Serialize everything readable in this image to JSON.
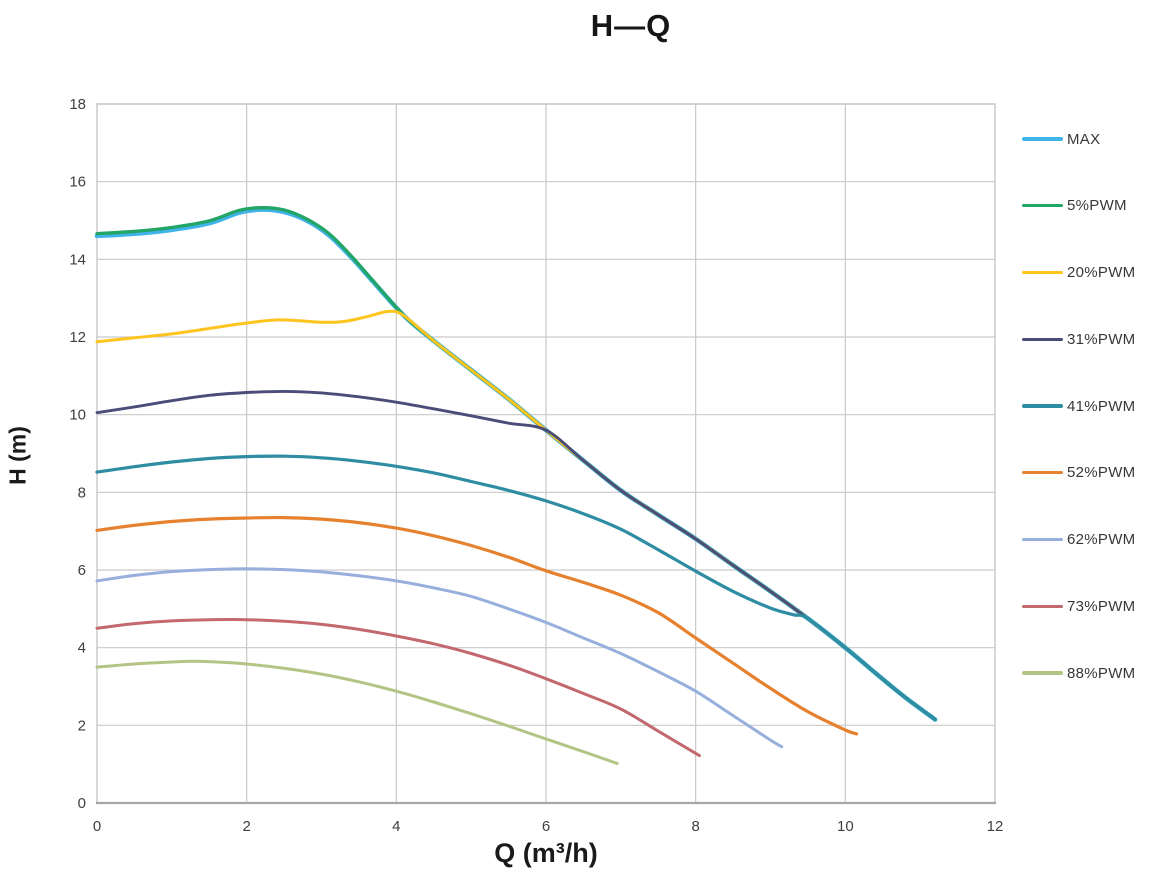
{
  "chart_data": {
    "type": "line",
    "title": "H—Q",
    "xlabel": "Q (m³/h)",
    "ylabel": "H (m)",
    "xlim": [
      0,
      12
    ],
    "ylim": [
      0,
      18
    ],
    "xticks": [
      0,
      2,
      4,
      6,
      8,
      10,
      12
    ],
    "yticks": [
      0,
      2,
      4,
      6,
      8,
      10,
      12,
      14,
      16,
      18
    ],
    "grid": true,
    "legend_position": "right",
    "colors": {
      "gridline": "#c9c9c9",
      "plot_border": "#c2c2c2",
      "bottom_axis": "#a6a6a6",
      "tick_text": "#3f3f3f",
      "title_text": "#161616"
    },
    "series": [
      {
        "name": "MAX",
        "color": "#3FB3EA",
        "width": 4.6,
        "points": [
          [
            0,
            14.6
          ],
          [
            0.5,
            14.66
          ],
          [
            1,
            14.76
          ],
          [
            1.5,
            14.93
          ],
          [
            1.9,
            15.2
          ],
          [
            2.2,
            15.28
          ],
          [
            2.5,
            15.22
          ],
          [
            2.8,
            15.0
          ],
          [
            3.1,
            14.62
          ],
          [
            3.4,
            14.05
          ],
          [
            3.7,
            13.4
          ],
          [
            4.1,
            12.55
          ],
          [
            4.5,
            11.9
          ],
          [
            5,
            11.15
          ],
          [
            5.5,
            10.4
          ],
          [
            6,
            9.6
          ],
          [
            6.5,
            8.82
          ],
          [
            7,
            8.05
          ],
          [
            7.5,
            7.42
          ],
          [
            8,
            6.8
          ],
          [
            8.5,
            6.12
          ],
          [
            9,
            5.45
          ],
          [
            9.5,
            4.75
          ],
          [
            10,
            4.0
          ],
          [
            10.4,
            3.35
          ],
          [
            10.8,
            2.72
          ],
          [
            11.2,
            2.15
          ]
        ]
      },
      {
        "name": "5%PWM",
        "color": "#23A567",
        "width": 3.4,
        "points": [
          [
            0,
            14.66
          ],
          [
            0.5,
            14.72
          ],
          [
            1,
            14.82
          ],
          [
            1.5,
            14.99
          ],
          [
            1.9,
            15.26
          ],
          [
            2.2,
            15.33
          ],
          [
            2.5,
            15.27
          ],
          [
            2.8,
            15.04
          ],
          [
            3.1,
            14.66
          ],
          [
            3.4,
            14.08
          ],
          [
            3.7,
            13.42
          ],
          [
            4.1,
            12.56
          ],
          [
            4.5,
            11.9
          ],
          [
            5,
            11.15
          ],
          [
            5.5,
            10.4
          ],
          [
            6,
            9.6
          ],
          [
            6.5,
            8.82
          ],
          [
            7,
            8.05
          ],
          [
            7.5,
            7.42
          ],
          [
            8,
            6.8
          ],
          [
            8.5,
            6.12
          ],
          [
            9,
            5.45
          ],
          [
            9.5,
            4.75
          ],
          [
            10,
            4.0
          ],
          [
            10.4,
            3.35
          ],
          [
            10.8,
            2.72
          ],
          [
            11.2,
            2.15
          ]
        ]
      },
      {
        "name": "20%PWM",
        "color": "#FFC41E",
        "width": 3.0,
        "points": [
          [
            0,
            11.88
          ],
          [
            0.5,
            11.98
          ],
          [
            1,
            12.08
          ],
          [
            1.5,
            12.22
          ],
          [
            2,
            12.36
          ],
          [
            2.4,
            12.44
          ],
          [
            2.7,
            12.42
          ],
          [
            3,
            12.38
          ],
          [
            3.3,
            12.4
          ],
          [
            3.6,
            12.52
          ],
          [
            3.9,
            12.66
          ],
          [
            4.1,
            12.55
          ],
          [
            4.5,
            11.9
          ],
          [
            5,
            11.15
          ],
          [
            5.5,
            10.4
          ],
          [
            6,
            9.6
          ],
          [
            6.5,
            8.82
          ],
          [
            7,
            8.05
          ],
          [
            7.5,
            7.42
          ],
          [
            8,
            6.8
          ],
          [
            8.5,
            6.12
          ],
          [
            9,
            5.45
          ],
          [
            9.5,
            4.75
          ],
          [
            10,
            4.0
          ],
          [
            10.4,
            3.35
          ],
          [
            10.8,
            2.72
          ],
          [
            11.2,
            2.15
          ]
        ]
      },
      {
        "name": "31%PWM",
        "color": "#4C4C78",
        "width": 2.9,
        "points": [
          [
            0,
            10.05
          ],
          [
            0.5,
            10.2
          ],
          [
            1,
            10.36
          ],
          [
            1.5,
            10.5
          ],
          [
            2,
            10.57
          ],
          [
            2.5,
            10.6
          ],
          [
            3,
            10.56
          ],
          [
            3.5,
            10.46
          ],
          [
            4,
            10.32
          ],
          [
            4.5,
            10.15
          ],
          [
            5,
            9.97
          ],
          [
            5.5,
            9.78
          ],
          [
            6,
            9.6
          ],
          [
            6.5,
            8.82
          ],
          [
            7,
            8.05
          ],
          [
            7.5,
            7.42
          ],
          [
            8,
            6.8
          ],
          [
            8.5,
            6.12
          ],
          [
            9,
            5.45
          ],
          [
            9.5,
            4.75
          ],
          [
            10,
            4.0
          ],
          [
            10.4,
            3.35
          ],
          [
            10.8,
            2.72
          ],
          [
            11.2,
            2.15
          ]
        ]
      },
      {
        "name": "41%PWM",
        "color": "#2E8CA3",
        "width": 3.2,
        "points": [
          [
            0,
            8.52
          ],
          [
            0.5,
            8.66
          ],
          [
            1,
            8.78
          ],
          [
            1.5,
            8.87
          ],
          [
            2,
            8.92
          ],
          [
            2.5,
            8.93
          ],
          [
            3,
            8.89
          ],
          [
            3.5,
            8.8
          ],
          [
            4,
            8.67
          ],
          [
            4.5,
            8.5
          ],
          [
            5,
            8.28
          ],
          [
            5.5,
            8.05
          ],
          [
            6,
            7.78
          ],
          [
            6.5,
            7.45
          ],
          [
            7,
            7.05
          ],
          [
            7.5,
            6.52
          ],
          [
            8,
            5.97
          ],
          [
            8.5,
            5.45
          ],
          [
            9,
            5.02
          ],
          [
            9.3,
            4.85
          ],
          [
            9.5,
            4.75
          ],
          [
            10,
            4.0
          ],
          [
            10.4,
            3.35
          ],
          [
            10.8,
            2.72
          ],
          [
            11.2,
            2.15
          ]
        ]
      },
      {
        "name": "52%PWM",
        "color": "#E5812F",
        "width": 3.2,
        "points": [
          [
            0,
            7.02
          ],
          [
            0.5,
            7.15
          ],
          [
            1,
            7.25
          ],
          [
            1.5,
            7.31
          ],
          [
            2,
            7.34
          ],
          [
            2.5,
            7.35
          ],
          [
            3,
            7.31
          ],
          [
            3.5,
            7.22
          ],
          [
            4,
            7.08
          ],
          [
            4.5,
            6.88
          ],
          [
            5,
            6.63
          ],
          [
            5.5,
            6.33
          ],
          [
            6,
            5.98
          ],
          [
            6.5,
            5.68
          ],
          [
            7,
            5.35
          ],
          [
            7.5,
            4.9
          ],
          [
            8,
            4.25
          ],
          [
            8.5,
            3.6
          ],
          [
            9,
            2.95
          ],
          [
            9.5,
            2.35
          ],
          [
            10,
            1.88
          ],
          [
            10.15,
            1.78
          ]
        ]
      },
      {
        "name": "62%PWM",
        "color": "#97AFDC",
        "width": 3.0,
        "points": [
          [
            0,
            5.72
          ],
          [
            0.5,
            5.86
          ],
          [
            1,
            5.96
          ],
          [
            1.5,
            6.01
          ],
          [
            2,
            6.03
          ],
          [
            2.5,
            6.01
          ],
          [
            3,
            5.95
          ],
          [
            3.5,
            5.85
          ],
          [
            4,
            5.72
          ],
          [
            4.5,
            5.54
          ],
          [
            5,
            5.32
          ],
          [
            5.5,
            5.0
          ],
          [
            6,
            4.65
          ],
          [
            6.5,
            4.25
          ],
          [
            7,
            3.85
          ],
          [
            7.5,
            3.38
          ],
          [
            8,
            2.88
          ],
          [
            8.5,
            2.25
          ],
          [
            9,
            1.62
          ],
          [
            9.15,
            1.45
          ]
        ]
      },
      {
        "name": "73%PWM",
        "color": "#C2686E",
        "width": 3.0,
        "points": [
          [
            0,
            4.5
          ],
          [
            0.5,
            4.62
          ],
          [
            1,
            4.69
          ],
          [
            1.5,
            4.72
          ],
          [
            2,
            4.72
          ],
          [
            2.5,
            4.68
          ],
          [
            3,
            4.6
          ],
          [
            3.5,
            4.47
          ],
          [
            4,
            4.3
          ],
          [
            4.5,
            4.1
          ],
          [
            5,
            3.85
          ],
          [
            5.5,
            3.55
          ],
          [
            6,
            3.2
          ],
          [
            6.5,
            2.82
          ],
          [
            7,
            2.42
          ],
          [
            7.5,
            1.85
          ],
          [
            8.05,
            1.22
          ]
        ]
      },
      {
        "name": "88%PWM",
        "color": "#B4C484",
        "width": 3.0,
        "points": [
          [
            0,
            3.5
          ],
          [
            0.5,
            3.58
          ],
          [
            1,
            3.63
          ],
          [
            1.3,
            3.65
          ],
          [
            1.7,
            3.62
          ],
          [
            2,
            3.58
          ],
          [
            2.5,
            3.47
          ],
          [
            3,
            3.32
          ],
          [
            3.5,
            3.12
          ],
          [
            4,
            2.88
          ],
          [
            4.5,
            2.6
          ],
          [
            5,
            2.3
          ],
          [
            5.5,
            1.98
          ],
          [
            6,
            1.65
          ],
          [
            6.5,
            1.32
          ],
          [
            6.95,
            1.02
          ]
        ]
      }
    ],
    "layout": {
      "plot_left": 97,
      "plot_right": 995,
      "plot_top": 104,
      "plot_bottom": 803,
      "legend_left": 1022,
      "legend_first_center_y": 139,
      "legend_spacing": 66.75
    }
  }
}
